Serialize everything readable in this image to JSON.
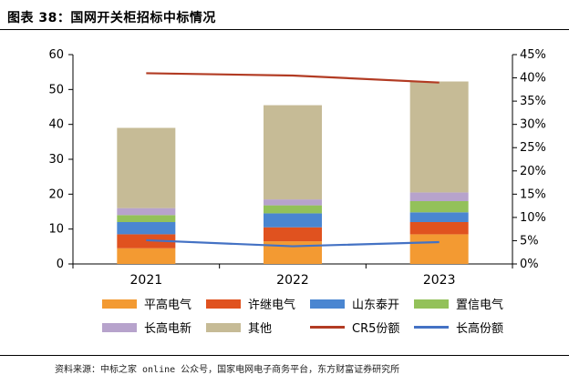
{
  "header": {
    "title": "图表 38：国网开关柜招标中标情况"
  },
  "source": "资料来源：中标之家 online 公众号，国家电网电子商务平台，东方财富证券研究所",
  "colors": {
    "平高电气": "#f39a32",
    "许继电气": "#e0521f",
    "山东泰开": "#4a86d1",
    "置信电气": "#93c15a",
    "长高电新": "#b7a3cc",
    "其他": "#c6bb96",
    "CR5份额": "#b23b23",
    "长高份额": "#4472c4"
  },
  "chart_data": {
    "type": "bar",
    "stacked": true,
    "categories": [
      "2021",
      "2022",
      "2023"
    ],
    "series": [
      {
        "name": "平高电气",
        "values": [
          4.5,
          6.5,
          8.5
        ]
      },
      {
        "name": "许继电气",
        "values": [
          4.0,
          4.0,
          3.5
        ]
      },
      {
        "name": "山东泰开",
        "values": [
          3.5,
          4.0,
          2.8
        ]
      },
      {
        "name": "置信电气",
        "values": [
          2.0,
          2.3,
          3.2
        ]
      },
      {
        "name": "长高电新",
        "values": [
          2.0,
          1.7,
          2.5
        ]
      },
      {
        "name": "其他",
        "values": [
          23.0,
          27.0,
          31.8
        ]
      }
    ],
    "line_series": [
      {
        "name": "CR5份额",
        "axis": "right",
        "values": [
          41.0,
          40.5,
          39.0
        ]
      },
      {
        "name": "长高份额",
        "axis": "right",
        "values": [
          5.1,
          3.8,
          4.7
        ]
      }
    ],
    "yticks_left": [
      "0",
      "10",
      "20",
      "30",
      "40",
      "50",
      "60"
    ],
    "yticks_right": [
      "0%",
      "5%",
      "10%",
      "15%",
      "20%",
      "25%",
      "30%",
      "35%",
      "40%",
      "45%"
    ],
    "ylim_left": [
      0,
      60
    ],
    "ylim_right": [
      0,
      45
    ],
    "legend": {
      "items": [
        "平高电气",
        "许继电气",
        "山东泰开",
        "置信电气",
        "长高电新",
        "其他",
        "CR5份额",
        "长高份额"
      ],
      "placement": "bottom"
    }
  }
}
